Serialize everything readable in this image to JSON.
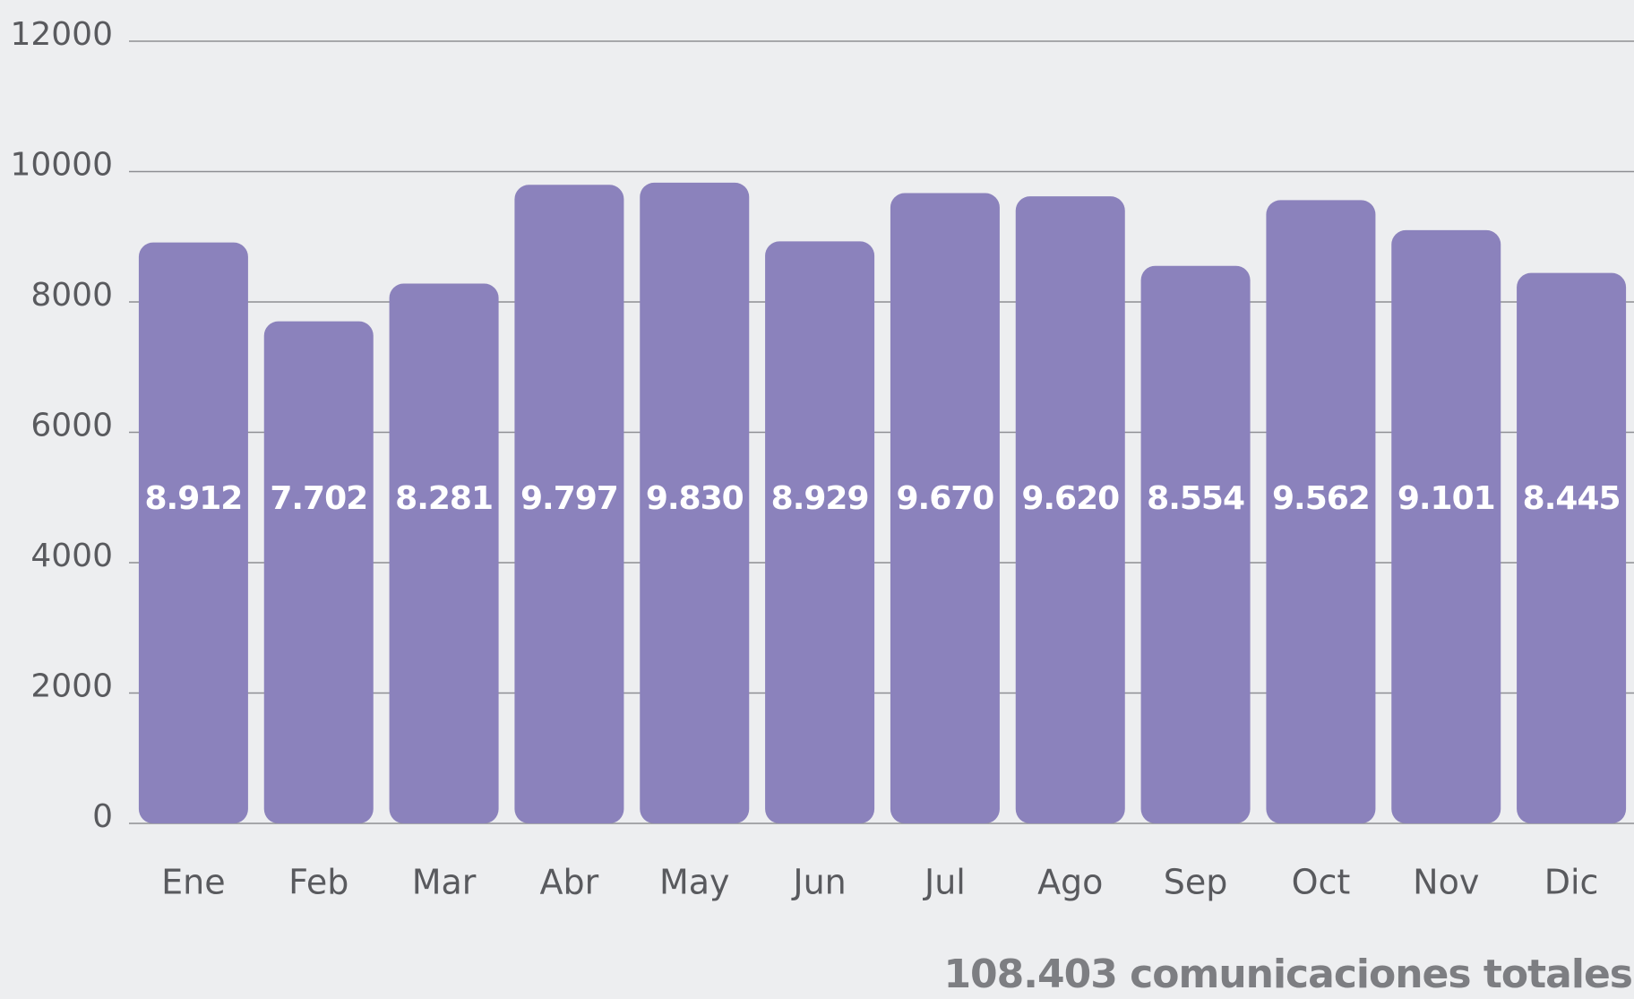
{
  "chart_data": {
    "type": "bar",
    "categories": [
      "Ene",
      "Feb",
      "Mar",
      "Abr",
      "May",
      "Jun",
      "Jul",
      "Ago",
      "Sep",
      "Oct",
      "Nov",
      "Dic"
    ],
    "values": [
      8912,
      7702,
      8281,
      9797,
      9830,
      8929,
      9670,
      9620,
      8554,
      9562,
      9101,
      8445
    ],
    "value_labels": [
      "8.912",
      "7.702",
      "8.281",
      "9.797",
      "9.830",
      "8.929",
      "9.670",
      "9.620",
      "8.554",
      "9.562",
      "9.101",
      "8.445"
    ],
    "color": "#8b82bc",
    "ylim": [
      0,
      12000
    ],
    "yticks": [
      0,
      2000,
      4000,
      6000,
      8000,
      10000,
      12000
    ],
    "grid": true,
    "annotation": "108.403 comunicaciones totales"
  }
}
